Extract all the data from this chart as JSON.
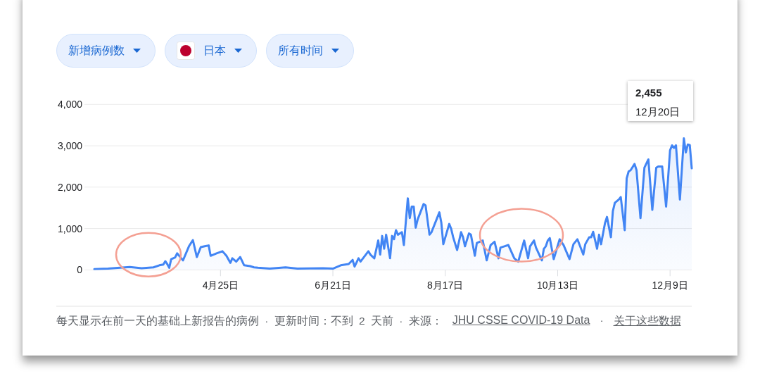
{
  "chart_data": {
    "type": "area",
    "title": "新增病例数",
    "subtitle": "日本",
    "annotations": [
      "所有时间",
      "2,455",
      "12月20日",
      "每天显示在前一天的基础上新报告的病例 · 更新时间：不到 2 天前 · 来源：",
      "JHU CSSE COVID-19 Data",
      "·",
      "关于这些数据"
    ],
    "color": "#4285f4",
    "grid": "y",
    "xlim": [
      "--02-16",
      "--12-20"
    ],
    "xticks": [
      {
        "value": "--04-25",
        "label": "4月25日"
      },
      {
        "value": "--06-21",
        "label": "6月21日"
      },
      {
        "value": "--08-17",
        "label": "8月17日"
      },
      {
        "value": "--10-13",
        "label": "10月13日"
      },
      {
        "value": "--12-09",
        "label": "12月9日"
      }
    ],
    "ylim": [
      0,
      4000
    ],
    "yticks": [
      0,
      {
        "value": 1000,
        "label": "1,000"
      },
      {
        "value": 2000,
        "label": "2,000"
      },
      {
        "value": 3000,
        "label": "3,000"
      },
      {
        "value": 4000,
        "label": "4,000"
      }
    ],
    "x": [
      "--02-21",
      "--02-28",
      "--03-10",
      "--03-16",
      "--03-22",
      "--03-25",
      "--03-27",
      "--03-28",
      "--03-29",
      "--03-30",
      "--03-31",
      "--04-02",
      "--04-03",
      "--04-06",
      "--04-09",
      "--04-11",
      "--04-13",
      "--04-15",
      "--04-17",
      "--04-19",
      "--04-20",
      "--04-23",
      "--04-26",
      "--04-28",
      "--04-30",
      "--05-01",
      "--05-03",
      "--05-05",
      "--05-07",
      "--05-10",
      "--05-12",
      "--05-14",
      "--05-20",
      "--05-28",
      "--06-03",
      "--06-16",
      "--06-21",
      "--06-25",
      "--06-29",
      "--07-01",
      "--07-02",
      "--07-04",
      "--07-05",
      "--07-09",
      "--07-10",
      "--07-12",
      "--07-14",
      "--07-15",
      "--07-16",
      "--07-17",
      "--07-18",
      "--07-20",
      "--07-21",
      "--07-22",
      "--07-23",
      "--07-24",
      "--07-26",
      "--07-27",
      "--07-29",
      "--07-30",
      "--07-31",
      "--08-01",
      "--08-02",
      "--08-03",
      "--08-06",
      "--08-07",
      "--08-09",
      "--08-10",
      "--08-14",
      "--08-15",
      "--08-16",
      "--08-19",
      "--08-20",
      "--08-21",
      "--08-23",
      "--08-25",
      "--08-26",
      "--08-27",
      "--08-29",
      "--08-30",
      "--09-01",
      "--09-02",
      "--09-05",
      "--09-07",
      "--09-09",
      "--09-11",
      "--09-13",
      "--09-14",
      "--09-16",
      "--09-18",
      "--09-21",
      "--09-23",
      "--09-26",
      "--09-28",
      "--09-29",
      "--10-01",
      "--10-02",
      "--10-05",
      "--10-06",
      "--10-07",
      "--10-08",
      "--10-09",
      "--10-11",
      "--10-14",
      "--10-16",
      "--10-19",
      "--10-21",
      "--10-23",
      "--10-26",
      "--10-27",
      "--10-29",
      "--10-30",
      "--10-31",
      "--11-02",
      "--11-03",
      "--11-04",
      "--11-06",
      "--11-07",
      "--11-09",
      "--11-10",
      "--11-11",
      "--11-13",
      "--11-14",
      "--11-16",
      "--11-17",
      "--11-18",
      "--11-19",
      "--11-21",
      "--11-22",
      "--11-24",
      "--11-26",
      "--11-28",
      "--11-30",
      "--12-02",
      "--12-03",
      "--12-05",
      "--12-07",
      "--12-09",
      "--12-10",
      "--12-11",
      "--12-12",
      "--12-14",
      "--12-16",
      "--12-17",
      "--12-18",
      "--12-19",
      "--12-20"
    ],
    "values": [
      20,
      30,
      70,
      40,
      60,
      110,
      130,
      210,
      140,
      50,
      260,
      300,
      400,
      230,
      570,
      720,
      310,
      550,
      570,
      590,
      340,
      400,
      450,
      340,
      170,
      280,
      200,
      310,
      110,
      90,
      60,
      50,
      30,
      60,
      30,
      40,
      30,
      110,
      140,
      240,
      80,
      280,
      200,
      450,
      370,
      280,
      710,
      370,
      820,
      510,
      850,
      280,
      820,
      740,
      960,
      850,
      910,
      600,
      1730,
      1250,
      1530,
      1530,
      1020,
      1220,
      1590,
      1560,
      850,
      910,
      1390,
      1140,
      620,
      1110,
      990,
      790,
      480,
      910,
      790,
      570,
      880,
      850,
      340,
      650,
      710,
      230,
      600,
      680,
      280,
      540,
      570,
      600,
      280,
      200,
      710,
      280,
      570,
      710,
      540,
      230,
      510,
      570,
      710,
      770,
      260,
      740,
      600,
      260,
      620,
      740,
      370,
      620,
      790,
      790,
      920,
      510,
      850,
      620,
      1130,
      1280,
      790,
      1420,
      1620,
      1700,
      1760,
      960,
      2210,
      2380,
      2410,
      2560,
      2410,
      1250,
      2470,
      2670,
      1450,
      2470,
      2500,
      2500,
      1530,
      2890,
      3010,
      2950,
      3010,
      1700,
      3180,
      2840,
      3030,
      3020,
      2455
    ]
  }
}
